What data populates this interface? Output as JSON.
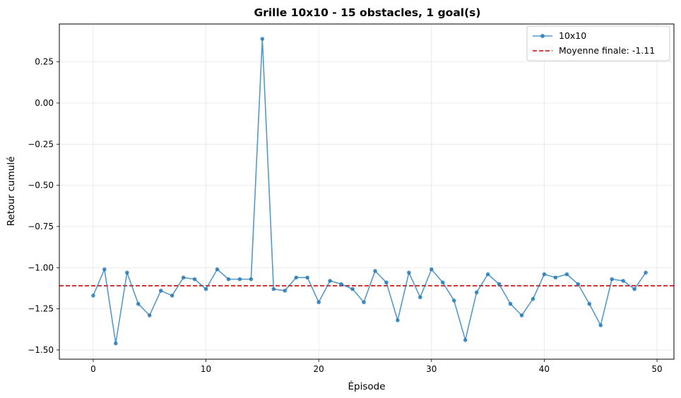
{
  "chart_data": {
    "type": "line",
    "title": "Grille 10x10 - 15 obstacles, 1 goal(s)",
    "xlabel": "Épisode",
    "ylabel": "Retour cumulé",
    "xlim": [
      -3,
      51.5
    ],
    "ylim": [
      -1.556,
      0.48
    ],
    "x_ticks": [
      0,
      10,
      20,
      30,
      40,
      50
    ],
    "y_ticks": [
      -1.5,
      -1.25,
      -1.0,
      -0.75,
      -0.5,
      -0.25,
      0.0,
      0.25
    ],
    "y_tick_labels": [
      "−1.50",
      "−1.25",
      "−1.00",
      "−0.75",
      "−0.50",
      "−0.25",
      "0.00",
      "0.25"
    ],
    "grid": true,
    "legend_position": "top-right",
    "series": [
      {
        "name": "10x10",
        "color": "#1f77b4",
        "x": [
          0,
          1,
          2,
          3,
          4,
          5,
          6,
          7,
          8,
          9,
          10,
          11,
          12,
          13,
          14,
          15,
          16,
          17,
          18,
          19,
          20,
          21,
          22,
          23,
          24,
          25,
          26,
          27,
          28,
          29,
          30,
          31,
          32,
          33,
          34,
          35,
          36,
          37,
          38,
          39,
          40,
          41,
          42,
          43,
          44,
          45,
          46,
          47,
          48,
          49
        ],
        "y": [
          -1.17,
          -1.01,
          -1.46,
          -1.03,
          -1.22,
          -1.29,
          -1.14,
          -1.17,
          -1.06,
          -1.07,
          -1.13,
          -1.01,
          -1.07,
          -1.07,
          -1.07,
          0.39,
          -1.13,
          -1.14,
          -1.06,
          -1.06,
          -1.21,
          -1.08,
          -1.1,
          -1.13,
          -1.21,
          -1.02,
          -1.09,
          -1.32,
          -1.03,
          -1.18,
          -1.01,
          -1.09,
          -1.2,
          -1.44,
          -1.15,
          -1.04,
          -1.1,
          -1.22,
          -1.29,
          -1.19,
          -1.04,
          -1.06,
          -1.04,
          -1.1,
          -1.22,
          -1.35,
          -1.07,
          -1.08,
          -1.13,
          -1.03
        ]
      }
    ],
    "reference_line": {
      "name": "Moyenne finale: -1.11",
      "value": -1.11,
      "color": "#d62728",
      "style": "dashed"
    }
  }
}
